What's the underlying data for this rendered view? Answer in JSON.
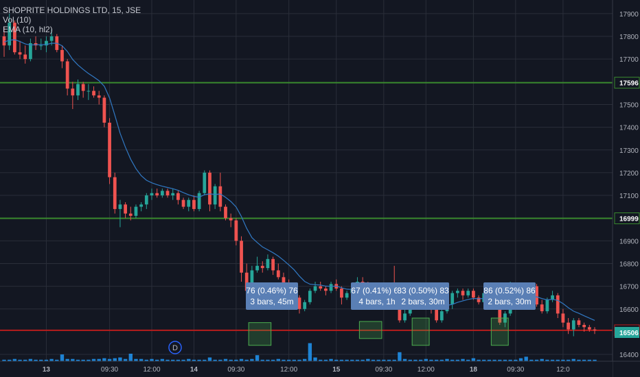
{
  "symbol_line": "SHOPRITE HOLDINGS LTD, 15, JSE",
  "indicator_vol": "Vol (10)",
  "indicator_ema": "EMA (10, hl2)",
  "colors": {
    "background": "#131722",
    "grid": "#2a2e39",
    "up": "#26a69a",
    "down": "#ef5350",
    "ema": "#3179c4",
    "volume": "#2196f3",
    "green_line": "#3a8a2e",
    "red_line": "#b71c1c",
    "callout_bg": "#5a7fb5",
    "callout_text": "#ffffff",
    "axis_text": "#b2b5be",
    "current_price_bg": "#26a69a",
    "event_icon": "#2962ff"
  },
  "price_axis": {
    "ticks": [
      17900,
      17800,
      17700,
      17500,
      17400,
      17300,
      17200,
      17100,
      16900,
      16800,
      16700,
      16600,
      16400
    ],
    "range": [
      16370,
      17960
    ]
  },
  "time_axis": {
    "labels": [
      "13",
      "09:30",
      "12:00",
      "14",
      "09:30",
      "12:00",
      "15",
      "09:30",
      "12:00",
      "18",
      "09:30",
      "12:0"
    ]
  },
  "horizontal_lines": [
    {
      "price": 17596,
      "label": "17596",
      "kind": "green"
    },
    {
      "price": 16999,
      "label": "16999",
      "kind": "green"
    },
    {
      "price": 16506,
      "label": "16506",
      "kind": "red"
    }
  ],
  "current_price_label": "16506",
  "event_marker": {
    "label": "D"
  },
  "callouts": [
    {
      "line1": "76 (0.46%) 76",
      "line2": "3 bars, 45m"
    },
    {
      "line1": "67 (0.41%) 67",
      "line2": "4 bars, 1h"
    },
    {
      "line1": "83 (0.50%) 83",
      "line2": "2 bars, 30m"
    },
    {
      "line1": "86 (0.52%) 86",
      "line2": "2 bars, 30m"
    }
  ],
  "chart_data": {
    "type": "candlestick",
    "title": "SHOPRITE HOLDINGS LTD, 15, JSE",
    "ylim": [
      16370,
      17960
    ],
    "candles": [
      [
        17800,
        17840,
        17710,
        17760
      ],
      [
        17760,
        17900,
        17740,
        17860
      ],
      [
        17860,
        17870,
        17720,
        17730
      ],
      [
        17730,
        17780,
        17700,
        17720
      ],
      [
        17720,
        17760,
        17680,
        17700
      ],
      [
        17700,
        17790,
        17690,
        17770
      ],
      [
        17770,
        17800,
        17740,
        17760
      ],
      [
        17760,
        17790,
        17740,
        17760
      ],
      [
        17760,
        17800,
        17730,
        17780
      ],
      [
        17780,
        17830,
        17760,
        17800
      ],
      [
        17800,
        17810,
        17730,
        17740
      ],
      [
        17740,
        17760,
        17660,
        17690
      ],
      [
        17690,
        17700,
        17540,
        17570
      ],
      [
        17570,
        17600,
        17480,
        17540
      ],
      [
        17540,
        17610,
        17520,
        17590
      ],
      [
        17590,
        17600,
        17530,
        17560
      ],
      [
        17560,
        17590,
        17520,
        17560
      ],
      [
        17560,
        17580,
        17530,
        17540
      ],
      [
        17540,
        17560,
        17500,
        17530
      ],
      [
        17530,
        17540,
        17400,
        17420
      ],
      [
        17420,
        17440,
        17150,
        17180
      ],
      [
        17180,
        17200,
        17020,
        17040
      ],
      [
        17040,
        17080,
        16960,
        17060
      ],
      [
        17060,
        17070,
        17000,
        17020
      ],
      [
        17020,
        17050,
        16990,
        17010
      ],
      [
        17010,
        17060,
        17000,
        17050
      ],
      [
        17050,
        17070,
        17030,
        17060
      ],
      [
        17060,
        17110,
        17040,
        17100
      ],
      [
        17100,
        17130,
        17080,
        17110
      ],
      [
        17110,
        17130,
        17090,
        17100
      ],
      [
        17100,
        17130,
        17090,
        17120
      ],
      [
        17120,
        17130,
        17090,
        17100
      ],
      [
        17100,
        17130,
        17080,
        17110
      ],
      [
        17110,
        17120,
        17060,
        17080
      ],
      [
        17080,
        17090,
        17040,
        17050
      ],
      [
        17050,
        17090,
        17030,
        17080
      ],
      [
        17080,
        17100,
        17030,
        17040
      ],
      [
        17040,
        17120,
        17030,
        17110
      ],
      [
        17110,
        17210,
        17100,
        17200
      ],
      [
        17200,
        17210,
        17030,
        17060
      ],
      [
        17060,
        17150,
        17040,
        17140
      ],
      [
        17140,
        17200,
        17030,
        17050
      ],
      [
        17050,
        17060,
        16990,
        17000
      ],
      [
        17000,
        17020,
        16960,
        16990
      ],
      [
        16990,
        17000,
        16880,
        16900
      ],
      [
        16900,
        16920,
        16720,
        16760
      ],
      [
        16760,
        16800,
        16640,
        16680
      ],
      [
        16680,
        16790,
        16670,
        16770
      ],
      [
        16770,
        16830,
        16760,
        16790
      ],
      [
        16790,
        16810,
        16760,
        16780
      ],
      [
        16780,
        16840,
        16770,
        16820
      ],
      [
        16820,
        16830,
        16750,
        16770
      ],
      [
        16770,
        16800,
        16730,
        16740
      ],
      [
        16740,
        16760,
        16700,
        16710
      ],
      [
        16710,
        16730,
        16680,
        16700
      ],
      [
        16700,
        16710,
        16640,
        16650
      ],
      [
        16650,
        16660,
        16580,
        16600
      ],
      [
        16600,
        16640,
        16590,
        16630
      ],
      [
        16630,
        16690,
        16620,
        16680
      ],
      [
        16680,
        16720,
        16670,
        16700
      ],
      [
        16700,
        16720,
        16680,
        16690
      ],
      [
        16690,
        16700,
        16660,
        16680
      ],
      [
        16680,
        16720,
        16670,
        16710
      ],
      [
        16710,
        16730,
        16680,
        16690
      ],
      [
        16690,
        16700,
        16620,
        16650
      ],
      [
        16650,
        16680,
        16640,
        16670
      ],
      [
        16670,
        16700,
        16660,
        16690
      ],
      [
        16690,
        16740,
        16680,
        16720
      ],
      [
        16720,
        16740,
        16690,
        16700
      ],
      [
        16700,
        16720,
        16660,
        16670
      ],
      [
        16670,
        16690,
        16640,
        16660
      ],
      [
        16660,
        16700,
        16650,
        16690
      ],
      [
        16690,
        16700,
        16670,
        16690
      ],
      [
        16690,
        16710,
        16660,
        16680
      ],
      [
        16680,
        16790,
        16600,
        16620
      ],
      [
        16620,
        16640,
        16540,
        16550
      ],
      [
        16550,
        16600,
        16540,
        16580
      ],
      [
        16580,
        16630,
        16570,
        16620
      ],
      [
        16620,
        16660,
        16600,
        16650
      ],
      [
        16650,
        16670,
        16620,
        16640
      ],
      [
        16640,
        16680,
        16630,
        16670
      ],
      [
        16670,
        16680,
        16580,
        16600
      ],
      [
        16600,
        16610,
        16540,
        16550
      ],
      [
        16550,
        16600,
        16540,
        16590
      ],
      [
        16590,
        16630,
        16580,
        16620
      ],
      [
        16620,
        16680,
        16600,
        16670
      ],
      [
        16670,
        16690,
        16650,
        16680
      ],
      [
        16680,
        16690,
        16640,
        16660
      ],
      [
        16660,
        16690,
        16650,
        16680
      ],
      [
        16680,
        16690,
        16640,
        16650
      ],
      [
        16650,
        16660,
        16620,
        16630
      ],
      [
        16630,
        16680,
        16620,
        16670
      ],
      [
        16670,
        16700,
        16650,
        16680
      ],
      [
        16680,
        16690,
        16600,
        16620
      ],
      [
        16620,
        16640,
        16530,
        16540
      ],
      [
        16540,
        16590,
        16520,
        16580
      ],
      [
        16580,
        16720,
        16570,
        16700
      ],
      [
        16700,
        16710,
        16640,
        16660
      ],
      [
        16660,
        16690,
        16650,
        16680
      ],
      [
        16680,
        16700,
        16640,
        16650
      ],
      [
        16650,
        16710,
        16640,
        16700
      ],
      [
        16700,
        16710,
        16610,
        16620
      ],
      [
        16620,
        16640,
        16580,
        16590
      ],
      [
        16590,
        16650,
        16580,
        16640
      ],
      [
        16640,
        16680,
        16630,
        16660
      ],
      [
        16660,
        16670,
        16560,
        16580
      ],
      [
        16580,
        16600,
        16520,
        16540
      ],
      [
        16540,
        16560,
        16490,
        16510
      ],
      [
        16510,
        16560,
        16480,
        16550
      ],
      [
        16550,
        16560,
        16520,
        16530
      ],
      [
        16530,
        16540,
        16500,
        16520
      ],
      [
        16520,
        16530,
        16500,
        16510
      ],
      [
        16510,
        16520,
        16490,
        16506
      ]
    ],
    "ema_label": "EMA (10, hl2)",
    "volume_label": "Vol (10)",
    "volume_relative": [
      0.2,
      0.2,
      0.3,
      0.2,
      0.2,
      0.3,
      0.2,
      0.2,
      0.2,
      0.3,
      0.2,
      0.9,
      0.3,
      0.3,
      0.2,
      0.2,
      0.2,
      0.3,
      0.3,
      0.4,
      0.3,
      0.4,
      0.5,
      0.3,
      1.0,
      0.3,
      0.3,
      0.2,
      0.3,
      0.2,
      0.3,
      0.2,
      0.2,
      0.2,
      0.2,
      0.3,
      0.2,
      0.2,
      0.2,
      0.5,
      0.2,
      0.2,
      0.3,
      0.2,
      0.2,
      0.3,
      0.2,
      0.3,
      0.8,
      0.2,
      0.2,
      0.2,
      0.3,
      0.2,
      0.2,
      0.2,
      0.2,
      0.3,
      2.4,
      0.5,
      0.2,
      0.2,
      0.3,
      0.2,
      0.2,
      0.2,
      0.2,
      0.2,
      0.2,
      0.3,
      0.2,
      0.2,
      0.2,
      0.2,
      0.2,
      1.2,
      0.3,
      0.2,
      0.2,
      0.2,
      0.3,
      0.2,
      0.2,
      0.2,
      0.3,
      0.2,
      0.2,
      0.3,
      0.2,
      0.4,
      0.2,
      0.2,
      0.2,
      0.2,
      0.2,
      0.2,
      0.2,
      0.2,
      0.4,
      0.6,
      0.2,
      0.2,
      0.3,
      0.2,
      0.2,
      0.2,
      0.2,
      0.2,
      0.3,
      0.2,
      0.2,
      0.2,
      0.2
    ]
  }
}
